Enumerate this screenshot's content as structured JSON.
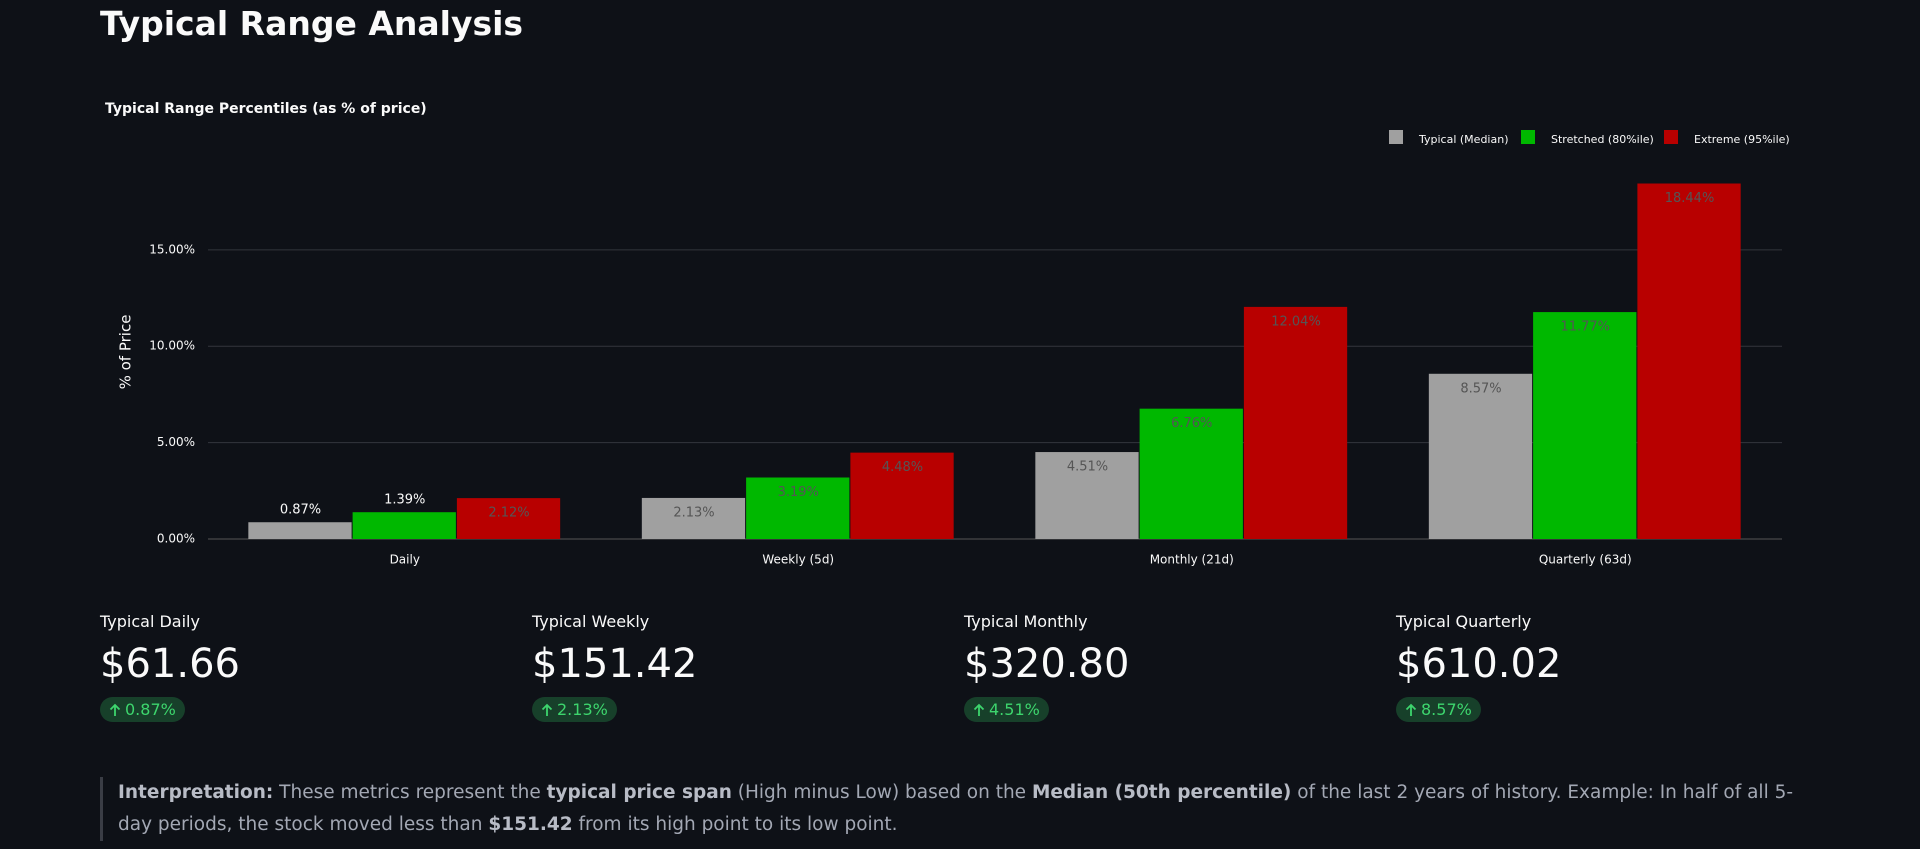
{
  "header": {
    "title": "Typical Range Analysis"
  },
  "chart_data": {
    "type": "bar",
    "title": "Typical Range Percentiles (as % of price)",
    "y_label": "% of Price",
    "categories": [
      "Daily",
      "Weekly (5d)",
      "Monthly (21d)",
      "Quarterly (63d)"
    ],
    "series": [
      {
        "name": "Typical (Median)",
        "color": "#a0a0a0",
        "values": [
          0.87,
          2.13,
          4.51,
          8.57
        ],
        "value_labels": [
          "0.87%",
          "2.13%",
          "4.51%",
          "8.57%"
        ]
      },
      {
        "name": "Stretched (80%ile)",
        "color": "#00b800",
        "values": [
          1.39,
          3.19,
          6.76,
          11.77
        ],
        "value_labels": [
          "1.39%",
          "3.19%",
          "6.76%",
          "11.77%"
        ]
      },
      {
        "name": "Extreme (95%ile)",
        "color": "#b80000",
        "values": [
          2.12,
          4.48,
          12.04,
          18.44
        ],
        "value_labels": [
          "2.12%",
          "4.48%",
          "12.04%",
          "18.44%"
        ]
      }
    ],
    "ylim": [
      0,
      19.4
    ],
    "yticks": [
      {
        "value": 0,
        "label": "0.00%"
      },
      {
        "value": 5,
        "label": "5.00%"
      },
      {
        "value": 10,
        "label": "10.00%"
      },
      {
        "value": 15,
        "label": "15.00%"
      }
    ],
    "grid": true,
    "legend": "top-right"
  },
  "metrics": [
    {
      "label": "Typical Daily",
      "value": "$61.66",
      "delta": "0.87%"
    },
    {
      "label": "Typical Weekly",
      "value": "$151.42",
      "delta": "2.13%"
    },
    {
      "label": "Typical Monthly",
      "value": "$320.80",
      "delta": "4.51%"
    },
    {
      "label": "Typical Quarterly",
      "value": "$610.02",
      "delta": "8.57%"
    }
  ],
  "interpretation": {
    "parts": [
      "Interpretation:",
      " These metrics represent the ",
      "typical price span",
      " (High minus Low) based on the ",
      "Median (50th percentile)",
      " of the last 2 years of history. Example: In half of all 5-day periods, the stock moved less than ",
      "$151.42",
      " from its high point to its low point."
    ]
  }
}
